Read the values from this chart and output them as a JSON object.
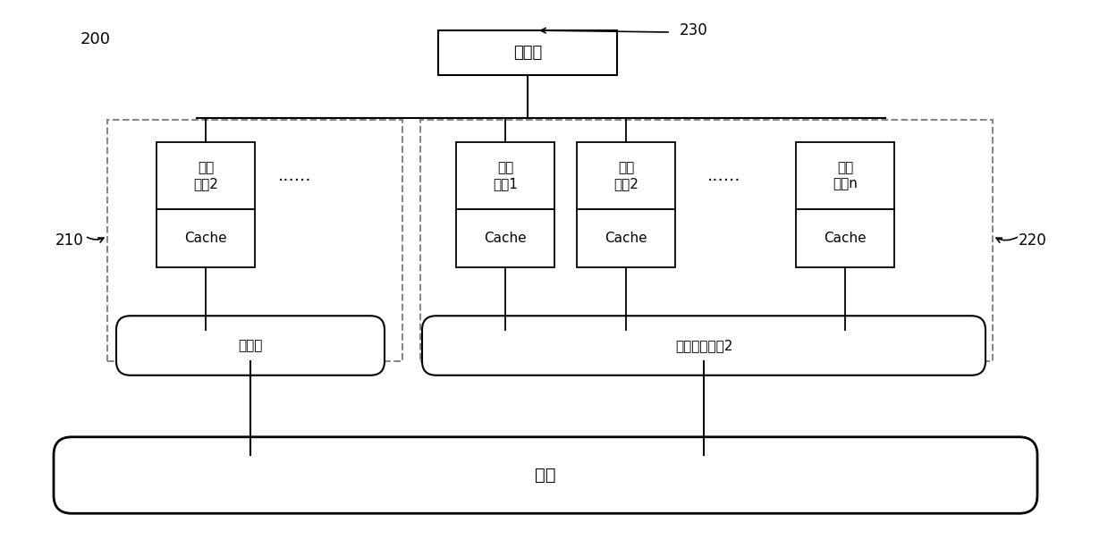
{
  "title": "",
  "bg_color": "#ffffff",
  "label_200": "200",
  "label_210": "210",
  "label_220": "220",
  "label_230": "230",
  "memory_label": "存储器",
  "cpu1_top": "处理\n器核2",
  "cpu1_cache": "Cache",
  "bus1_label": "内总线",
  "cpu2_top": "处理\n器核1",
  "cpu2_cache": "Cache",
  "cpu3_top": "处理\n器核2",
  "cpu3_cache": "Cache",
  "cpu4_top": "处理\n器核n",
  "cpu4_cache": "Cache",
  "bus2_label": "处理器内总线2",
  "main_bus_label": "总线",
  "dots": "......",
  "line_color": "#000000",
  "box_color": "#ffffff",
  "dashed_color": "#555555"
}
